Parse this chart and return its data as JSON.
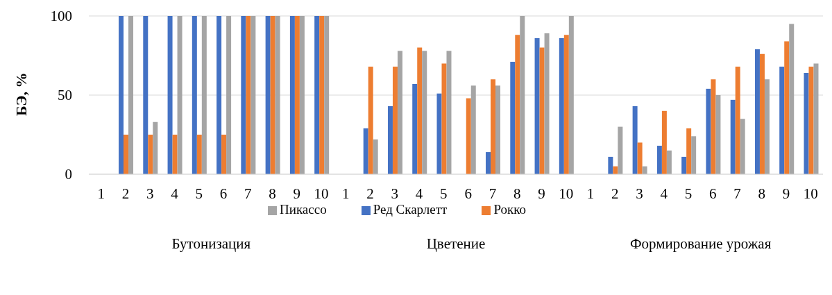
{
  "chart_data": {
    "type": "bar",
    "categories": [
      "1",
      "2",
      "3",
      "4",
      "5",
      "6",
      "7",
      "8",
      "9",
      "10",
      "1",
      "2",
      "3",
      "4",
      "5",
      "6",
      "7",
      "8",
      "9",
      "10",
      "1",
      "2",
      "3",
      "4",
      "5",
      "6",
      "7",
      "8",
      "9",
      "10"
    ],
    "series": [
      {
        "name": "Ред Скарлетт",
        "color": "#4472c4",
        "values": [
          null,
          100,
          100,
          100,
          100,
          100,
          100,
          100,
          100,
          100,
          null,
          29,
          43,
          57,
          51,
          0,
          14,
          71,
          86,
          86,
          null,
          11,
          43,
          18,
          11,
          54,
          47,
          79,
          68,
          64
        ]
      },
      {
        "name": "Рокко",
        "color": "#ed7d31",
        "values": [
          null,
          25,
          25,
          25,
          25,
          25,
          100,
          100,
          100,
          100,
          null,
          68,
          68,
          80,
          70,
          48,
          60,
          88,
          80,
          88,
          null,
          5,
          20,
          40,
          29,
          60,
          68,
          76,
          84,
          68
        ]
      },
      {
        "name": "Пикассо",
        "color": "#a5a5a5",
        "values": [
          null,
          100,
          33,
          100,
          100,
          100,
          100,
          100,
          100,
          100,
          null,
          22,
          78,
          78,
          78,
          56,
          56,
          100,
          89,
          100,
          null,
          30,
          5,
          15,
          24,
          50,
          35,
          60,
          95,
          70
        ]
      }
    ],
    "ylabel": "БЭ, %",
    "annotations": [
      "Бутонизация",
      "Цветение",
      "Формирование урожая"
    ],
    "ylim": [
      0,
      100
    ],
    "yticks": [
      0,
      50,
      100
    ],
    "grid": "y",
    "legend": "bottom"
  }
}
